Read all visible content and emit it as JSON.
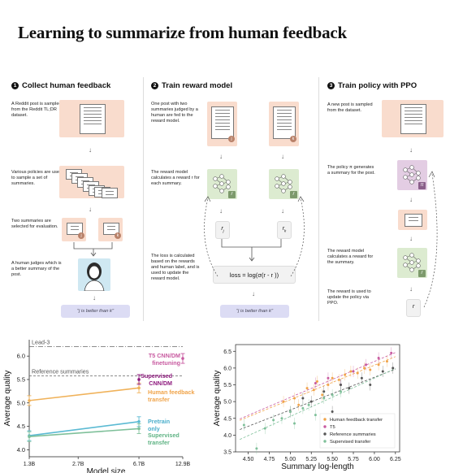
{
  "title": "Learning to summarize from human feedback",
  "steps": [
    {
      "num": "1",
      "heading": "Collect human feedback",
      "descs": [
        "A Reddit post is sampled from the Reddit TL;DR dataset.",
        "Various policies are used to sample a set of summaries.",
        "Two summaries are selected for evaluation.",
        "A human judges which is a better summary of the post."
      ],
      "badges": [
        "j",
        "k"
      ],
      "pill": "\"j is better than k\""
    },
    {
      "num": "2",
      "heading": "Train reward model",
      "descs": [
        "One post with two summaries judged by a human are fed to the reward model.",
        "The reward model calculates a reward r for each summary.",
        "The loss is calculated based on the rewards and human label, and is used to update the reward model."
      ],
      "badges": [
        "j",
        "k"
      ],
      "rewards": [
        "r",
        "r"
      ],
      "reward_subs": [
        "j",
        "k"
      ],
      "loss": "loss = log(σ(r  - r ))",
      "pill": "\"j is better than k\""
    },
    {
      "num": "3",
      "heading": "Train policy with PPO",
      "descs": [
        "A new post is sampled from the dataset.",
        "The policy π generates a summary for the post.",
        "The reward model calculates a reward for the summary.",
        "The reward is used to update the policy via PPO."
      ],
      "reward": "r"
    }
  ],
  "icons": {
    "reward_model": "r",
    "policy": "π"
  },
  "chart_data": [
    {
      "type": "line",
      "xlabel": "Model size",
      "ylabel": "Average quality",
      "x_ticks": [
        "1.3B",
        "2.7B",
        "6.7B",
        "12.9B"
      ],
      "y_ticks": [
        "4.0",
        "4.5",
        "5.0",
        "5.5",
        "6.0"
      ],
      "ylim": [
        3.85,
        6.35
      ],
      "reference_lines": [
        {
          "name": "Lead-3",
          "value": 6.2
        },
        {
          "name": "Reference summaries",
          "value": 5.58
        }
      ],
      "series": [
        {
          "name": "Human feedback transfer",
          "color": "#f0b25a",
          "x": [
            1.3,
            6.7
          ],
          "values": [
            5.05,
            5.32
          ]
        },
        {
          "name": "Pretrain only",
          "color": "#5bbad3",
          "x": [
            1.3,
            6.7
          ],
          "values": [
            4.3,
            4.6
          ]
        },
        {
          "name": "Supervised transfer",
          "color": "#7fc09a",
          "x": [
            1.3,
            6.7
          ],
          "values": [
            4.28,
            4.45
          ]
        },
        {
          "name": "Supervised CNN/DM",
          "color": "#8e1a7e",
          "x": [
            6.7
          ],
          "values": [
            5.5
          ]
        },
        {
          "name": "T5 CNN/DM finetuning",
          "color": "#c85aa0",
          "x": [
            12.9
          ],
          "values": [
            5.95
          ]
        }
      ],
      "labels": [
        {
          "text": "Lead-3",
          "color": "#555"
        },
        {
          "text": "Reference summaries",
          "color": "#555"
        },
        {
          "text": "T5 CNN/DM finetuning",
          "color": "#c85aa0"
        },
        {
          "text": "Supervised CNN/DM",
          "color": "#8e1a7e"
        },
        {
          "text": "Human feedback transfer",
          "color": "#f0a44a"
        },
        {
          "text": "Pretrain only",
          "color": "#4aaecb"
        },
        {
          "text": "Supervised transfer",
          "color": "#5fb384"
        }
      ]
    },
    {
      "type": "scatter",
      "xlabel": "Summary log-length",
      "ylabel": "Average quality",
      "xlim": [
        4.35,
        6.3
      ],
      "ylim": [
        3.5,
        6.7
      ],
      "x_ticks": [
        "4.50",
        "4.75",
        "5.00",
        "5.25",
        "5.50",
        "5.75",
        "6.00",
        "6.25"
      ],
      "y_ticks": [
        "3.5",
        "4.0",
        "4.5",
        "5.0",
        "5.5",
        "6.0",
        "6.5"
      ],
      "legend_position": "bottom-right",
      "series": [
        {
          "name": "Human feedback transfer",
          "color": "#f0a44a",
          "x": [
            4.92,
            5.05,
            5.1,
            5.2,
            5.28,
            5.32,
            5.38,
            5.45,
            5.5,
            5.58,
            5.65,
            5.72,
            5.8,
            5.88,
            5.95,
            6.05,
            6.15
          ],
          "y": [
            5.0,
            5.1,
            4.9,
            5.4,
            5.35,
            5.6,
            5.2,
            5.5,
            5.7,
            5.65,
            5.8,
            5.9,
            5.85,
            6.0,
            5.95,
            6.1,
            6.2
          ]
        },
        {
          "name": "T5",
          "color": "#c85aa0",
          "x": [
            5.3,
            5.45,
            5.6,
            5.75,
            5.9,
            6.05,
            6.2
          ],
          "y": [
            5.55,
            5.7,
            5.5,
            5.9,
            6.1,
            6.3,
            6.45
          ]
        },
        {
          "name": "Reference summaries",
          "color": "#555555",
          "x": [
            5.0,
            5.15,
            5.25,
            5.4,
            5.5,
            5.6,
            5.7,
            5.85,
            5.95,
            6.1,
            6.22
          ],
          "y": [
            4.7,
            5.1,
            5.0,
            5.3,
            4.7,
            5.5,
            5.4,
            5.7,
            5.5,
            5.9,
            6.0
          ]
        },
        {
          "name": "Supervised transfer",
          "color": "#7fc09a",
          "x": [
            4.45,
            4.6,
            4.7,
            4.8,
            4.9,
            5.0,
            5.05,
            5.15,
            5.22,
            5.3,
            5.4,
            5.5,
            5.6
          ],
          "y": [
            4.3,
            3.6,
            4.2,
            4.45,
            4.5,
            4.7,
            4.35,
            4.8,
            4.9,
            4.6,
            5.1,
            5.2,
            5.3
          ]
        }
      ]
    }
  ]
}
